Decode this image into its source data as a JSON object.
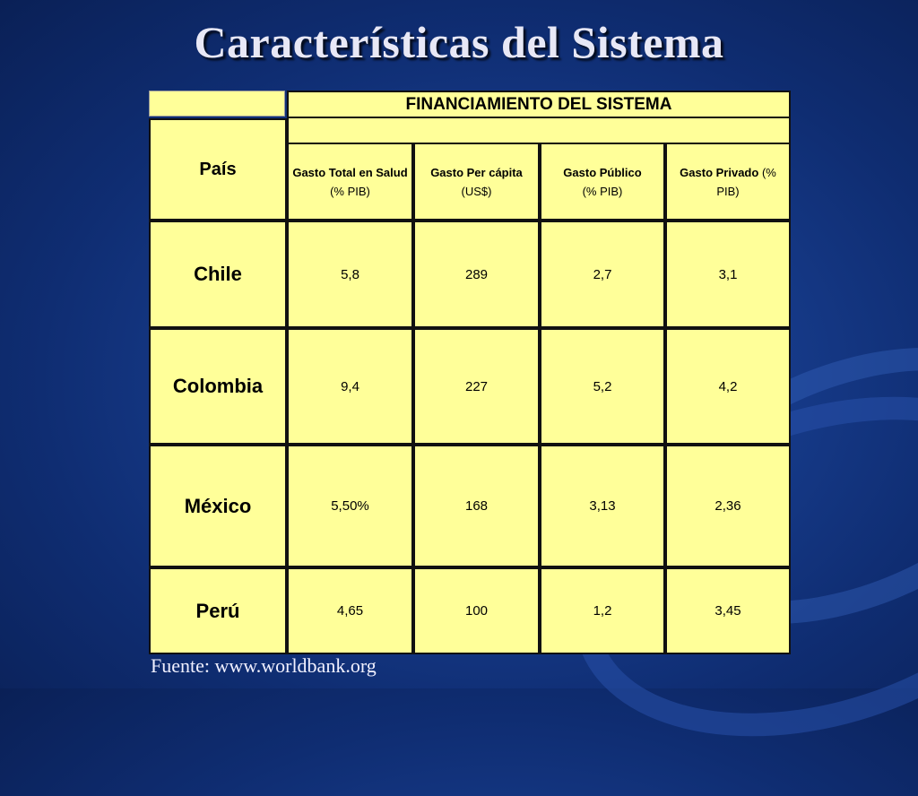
{
  "slide": {
    "title": "Características del Sistema",
    "source": "Fuente: www.worldbank.org"
  },
  "table": {
    "group_header": "FINANCIAMIENTO DEL SISTEMA",
    "row_header": "País",
    "columns": [
      {
        "name": "Gasto Total en Salud",
        "unit": "(% PIB)"
      },
      {
        "name": "Gasto Per cápita",
        "unit": "(US$)"
      },
      {
        "name": "Gasto Público",
        "unit": "(% PIB)"
      },
      {
        "name": "Gasto Privado",
        "unit": "(% PIB)"
      }
    ],
    "rows": [
      {
        "country": "Chile",
        "values": [
          "5,8",
          "289",
          "2,7",
          "3,1"
        ]
      },
      {
        "country": "Colombia",
        "values": [
          "9,4",
          "227",
          "5,2",
          "4,2"
        ]
      },
      {
        "country": "México",
        "values": [
          "5,50%",
          "168",
          "3,13",
          "2,36"
        ]
      },
      {
        "country": "Perú",
        "values": [
          "4,65",
          "100",
          "1,2",
          "3,45"
        ]
      }
    ]
  },
  "colors": {
    "background": "#173c8c",
    "cell_fill": "#ffff99",
    "title_text": "#e8e8f6"
  }
}
